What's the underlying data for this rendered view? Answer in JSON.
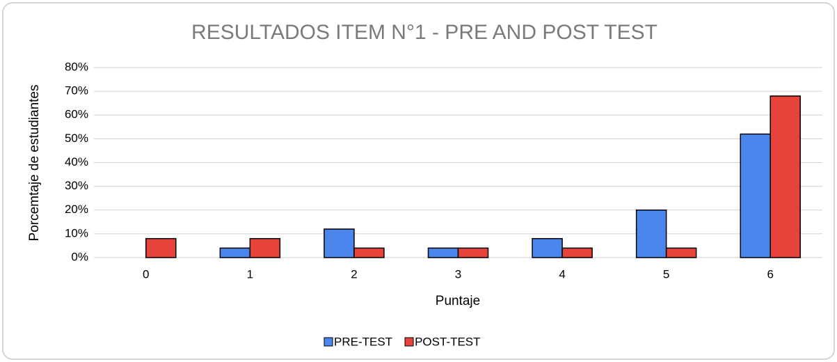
{
  "chart_data": {
    "type": "bar",
    "title": "RESULTADOS  ITEM N°1 - PRE AND POST TEST",
    "x_label": "Puntaje",
    "y_label": "Porcemtaje de estudiantes",
    "categories": [
      "0",
      "1",
      "2",
      "3",
      "4",
      "5",
      "6"
    ],
    "series": [
      {
        "name": "PRE-TEST",
        "color": "#4a86ec",
        "values": [
          0,
          4,
          12,
          4,
          8,
          20,
          52
        ]
      },
      {
        "name": "POST-TEST",
        "color": "#e8433a",
        "values": [
          8,
          8,
          4,
          4,
          4,
          4,
          68
        ]
      }
    ],
    "ylim": [
      0,
      80
    ],
    "yticks": [
      {
        "value": 0,
        "label": "0%"
      },
      {
        "value": 10,
        "label": "10%"
      },
      {
        "value": 20,
        "label": "20%"
      },
      {
        "value": 30,
        "label": "30%"
      },
      {
        "value": 40,
        "label": "40%"
      },
      {
        "value": 50,
        "label": "50%"
      },
      {
        "value": 60,
        "label": "60%"
      },
      {
        "value": 70,
        "label": "70%"
      },
      {
        "value": 80,
        "label": "80%"
      }
    ],
    "grid": true,
    "legend": "bottom"
  }
}
